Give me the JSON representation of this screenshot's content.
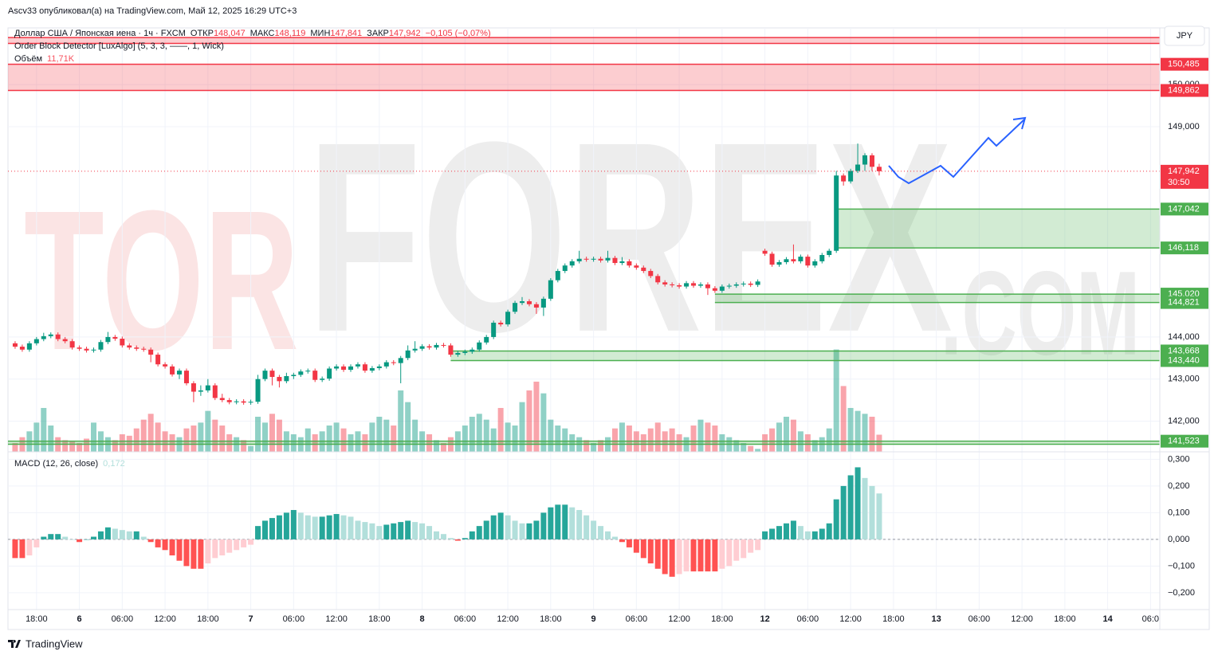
{
  "header": {
    "publisher": "Ascv33 опубликовал(а) на TradingView.com, Май 12, 2025 16:29 UTC+3",
    "currency": "JPY"
  },
  "legend": {
    "symbol": "Доллар США / Японская иена · 1ч · FXCM",
    "open_label": "ОТКР",
    "open": "148,047",
    "high_label": "МАКС",
    "high": "148,119",
    "low_label": "МИН",
    "low": "147,841",
    "close_label": "ЗАКР",
    "close": "147,942",
    "change": "−0,105 (−0,07%)",
    "indicator": "Order Block Detector [LuxAlgo] (5, 3, 3, ——, 1, Wick)",
    "volume_label": "Объём",
    "volume_value": "11,71K",
    "macd_label": "MACD (12, 26, close)",
    "macd_value": "0,172"
  },
  "watermark": [
    "TOR",
    "FOREX",
    ".COM"
  ],
  "footer": "TradingView",
  "chart_data": [
    {
      "type": "candlestick",
      "up_color": "#089981",
      "down_color": "#f23645",
      "xlim": [
        -1,
        160.3
      ],
      "xticks": [
        {
          "value": 3,
          "label": "18:00"
        },
        {
          "value": 9,
          "label": "6"
        },
        {
          "value": 15,
          "label": "06:00"
        },
        {
          "value": 21,
          "label": "12:00"
        },
        {
          "value": 27,
          "label": "18:00"
        },
        {
          "value": 33,
          "label": "7"
        },
        {
          "value": 39,
          "label": "06:00"
        },
        {
          "value": 45,
          "label": "12:00"
        },
        {
          "value": 51,
          "label": "18:00"
        },
        {
          "value": 57,
          "label": "8"
        },
        {
          "value": 63,
          "label": "06:00"
        },
        {
          "value": 69,
          "label": "12:00"
        },
        {
          "value": 75,
          "label": "18:00"
        },
        {
          "value": 81,
          "label": "9"
        },
        {
          "value": 87,
          "label": "06:00"
        },
        {
          "value": 93,
          "label": "12:00"
        },
        {
          "value": 99,
          "label": "18:00"
        },
        {
          "value": 105,
          "label": "12"
        },
        {
          "value": 111,
          "label": "06:00"
        },
        {
          "value": 117,
          "label": "12:00"
        },
        {
          "value": 123,
          "label": "18:00"
        },
        {
          "value": 129,
          "label": "13"
        },
        {
          "value": 135,
          "label": "06:00"
        },
        {
          "value": 141,
          "label": "12:00"
        },
        {
          "value": 147,
          "label": "18:00"
        },
        {
          "value": 153,
          "label": "14"
        },
        {
          "value": 159,
          "label": "06:0"
        }
      ],
      "ylim": [
        141.27,
        151.35
      ],
      "yticks": [
        {
          "value": 150,
          "label": "150,000"
        },
        {
          "value": 149,
          "label": "149,000"
        },
        {
          "value": 144,
          "label": "144,000"
        },
        {
          "value": 143,
          "label": "143,000"
        },
        {
          "value": 142,
          "label": "142,000"
        }
      ],
      "grid": true,
      "open": [
        143.85,
        143.77,
        143.7,
        143.85,
        143.95,
        144.02,
        144.06,
        143.95,
        143.9,
        143.75,
        143.72,
        143.68,
        143.7,
        143.88,
        144.0,
        143.96,
        143.8,
        143.75,
        143.72,
        143.7,
        143.58,
        143.35,
        143.3,
        143.11,
        143.2,
        142.9,
        142.7,
        142.73,
        142.85,
        142.55,
        142.5,
        142.45,
        142.47,
        142.44,
        142.46,
        143.0,
        143.2,
        143.05,
        142.95,
        143.07,
        143.1,
        143.18,
        143.2,
        142.98,
        143.01,
        143.25,
        143.3,
        143.22,
        143.3,
        143.35,
        143.2,
        143.26,
        143.3,
        143.4,
        143.38,
        143.5,
        143.68,
        143.72,
        143.78,
        143.75,
        143.81,
        143.8,
        143.58,
        143.62,
        143.65,
        143.7,
        143.87,
        144.0,
        144.34,
        144.3,
        144.6,
        144.81,
        144.85,
        144.78,
        144.7,
        144.91,
        145.35,
        145.57,
        145.7,
        145.8,
        145.86,
        145.84,
        145.86,
        145.82,
        145.88,
        145.76,
        145.8,
        145.7,
        145.65,
        145.57,
        145.45,
        145.3,
        145.25,
        145.23,
        145.2,
        145.28,
        145.22,
        145.25,
        145.16,
        145.1,
        145.2,
        145.22,
        145.25,
        145.27,
        145.24,
        146.05,
        145.98,
        145.72,
        145.78,
        145.85,
        145.8,
        145.91,
        145.7,
        145.8,
        145.95,
        146.05,
        147.84,
        147.7,
        147.95,
        148.1,
        148.32,
        148.047
      ],
      "high": [
        143.9,
        143.82,
        143.9,
        144.0,
        144.1,
        144.11,
        144.11,
        144.0,
        143.95,
        143.8,
        143.77,
        143.75,
        143.93,
        144.12,
        144.05,
        144.01,
        143.85,
        143.8,
        143.77,
        143.75,
        143.63,
        143.4,
        143.35,
        143.25,
        143.25,
        142.95,
        142.85,
        143.0,
        142.9,
        142.65,
        142.55,
        142.52,
        142.52,
        142.51,
        143.1,
        143.25,
        143.25,
        143.1,
        143.15,
        143.15,
        143.23,
        143.25,
        143.25,
        143.06,
        143.3,
        143.35,
        143.35,
        143.35,
        143.4,
        143.4,
        143.31,
        143.35,
        143.45,
        143.45,
        143.55,
        143.8,
        143.9,
        143.83,
        143.83,
        143.86,
        143.86,
        143.85,
        143.67,
        143.7,
        143.75,
        143.92,
        144.05,
        144.39,
        144.39,
        144.65,
        144.86,
        144.95,
        144.9,
        144.83,
        144.96,
        145.4,
        145.62,
        145.75,
        145.85,
        146.05,
        145.91,
        145.91,
        145.91,
        146.05,
        145.93,
        145.9,
        145.85,
        145.75,
        145.7,
        145.62,
        145.5,
        145.35,
        145.3,
        145.28,
        145.33,
        145.33,
        145.3,
        145.3,
        145.21,
        145.25,
        145.27,
        145.3,
        145.32,
        145.32,
        145.37,
        146.1,
        146.03,
        145.83,
        145.9,
        146.2,
        145.96,
        145.96,
        145.85,
        146.0,
        146.1,
        147.95,
        147.89,
        148.0,
        148.6,
        148.37,
        148.37,
        148.119
      ],
      "low": [
        143.72,
        143.65,
        143.65,
        143.8,
        143.9,
        143.97,
        143.9,
        143.85,
        143.7,
        143.67,
        143.63,
        143.63,
        143.65,
        143.83,
        143.91,
        143.75,
        143.7,
        143.67,
        143.65,
        143.4,
        143.3,
        143.25,
        143.06,
        143.0,
        142.85,
        142.45,
        142.6,
        142.68,
        142.5,
        142.45,
        142.4,
        142.4,
        142.39,
        142.39,
        142.41,
        142.95,
        142.85,
        142.8,
        142.9,
        143.0,
        143.05,
        143.13,
        142.93,
        142.93,
        142.96,
        143.2,
        143.17,
        143.17,
        143.25,
        143.15,
        143.15,
        143.21,
        143.25,
        143.33,
        142.9,
        143.45,
        143.63,
        143.67,
        143.7,
        143.7,
        143.75,
        143.53,
        143.53,
        143.57,
        143.6,
        143.65,
        143.82,
        143.95,
        144.25,
        144.25,
        144.55,
        144.76,
        144.73,
        144.55,
        144.5,
        144.86,
        145.3,
        145.52,
        145.65,
        145.75,
        145.79,
        145.79,
        145.77,
        145.77,
        145.71,
        145.71,
        145.65,
        145.6,
        145.52,
        145.4,
        145.25,
        145.2,
        145.18,
        145.15,
        145.15,
        145.17,
        145.17,
        145.0,
        145.05,
        145.05,
        145.15,
        145.17,
        145.2,
        145.19,
        145.19,
        145.93,
        145.67,
        145.67,
        145.73,
        145.75,
        145.75,
        145.65,
        145.65,
        145.75,
        145.9,
        146.0,
        147.6,
        147.65,
        147.9,
        147.95,
        147.95,
        147.841
      ],
      "close": [
        143.77,
        143.7,
        143.85,
        143.95,
        144.02,
        144.06,
        143.95,
        143.9,
        143.75,
        143.72,
        143.68,
        143.7,
        143.88,
        144.0,
        143.96,
        143.8,
        143.75,
        143.72,
        143.7,
        143.58,
        143.35,
        143.3,
        143.11,
        143.2,
        142.9,
        142.7,
        142.73,
        142.85,
        142.55,
        142.5,
        142.45,
        142.47,
        142.44,
        142.46,
        143.0,
        143.2,
        143.05,
        142.95,
        143.07,
        143.1,
        143.18,
        143.2,
        142.98,
        143.01,
        143.25,
        143.3,
        143.22,
        143.3,
        143.35,
        143.2,
        143.26,
        143.3,
        143.4,
        143.38,
        143.5,
        143.68,
        143.72,
        143.78,
        143.75,
        143.81,
        143.8,
        143.58,
        143.62,
        143.65,
        143.7,
        143.87,
        144.0,
        144.34,
        144.3,
        144.6,
        144.81,
        144.85,
        144.78,
        144.7,
        144.91,
        145.35,
        145.57,
        145.7,
        145.8,
        145.86,
        145.84,
        145.86,
        145.82,
        145.88,
        145.76,
        145.8,
        145.7,
        145.65,
        145.57,
        145.45,
        145.3,
        145.25,
        145.23,
        145.2,
        145.28,
        145.22,
        145.25,
        145.16,
        145.1,
        145.2,
        145.22,
        145.25,
        145.27,
        145.24,
        145.32,
        145.98,
        145.72,
        145.78,
        145.85,
        145.8,
        145.91,
        145.7,
        145.8,
        145.95,
        146.05,
        147.84,
        147.7,
        147.95,
        148.1,
        148.32,
        148.047,
        147.942
      ],
      "last_price": {
        "value": 147.942,
        "label": "147,942"
      },
      "countdown": "30:50",
      "zones": [
        {
          "top": 151.12,
          "bottom": 150.98,
          "color": "#f23645",
          "start": -1
        },
        {
          "top": {
            "value": 150.485,
            "label": "150,485"
          },
          "bottom": {
            "value": 149.862,
            "label": "149,862"
          },
          "color": "#f23645",
          "start": -1
        },
        {
          "top": {
            "value": 147.042,
            "label": "147,042"
          },
          "bottom": {
            "value": 146.118,
            "label": "146,118"
          },
          "color": "#4caf50",
          "start": 115
        },
        {
          "top": {
            "value": 145.02,
            "label": "145,020"
          },
          "bottom": {
            "value": 144.821,
            "label": "144,821"
          },
          "color": "#4caf50",
          "start": 98
        },
        {
          "top": {
            "value": 143.668,
            "label": "143,668"
          },
          "bottom": {
            "value": 143.44,
            "label": "143,440"
          },
          "color": "#4caf50",
          "start": 61
        },
        {
          "top": {
            "value": 141.523,
            "label": "141,523"
          },
          "bottom": 141.45,
          "color": "#4caf50",
          "start": -1
        }
      ]
    },
    {
      "type": "volume",
      "ylim": [
        0,
        290
      ],
      "values": [
        6,
        10,
        14,
        20,
        30,
        18,
        10,
        8,
        7,
        6,
        9,
        20,
        14,
        10,
        8,
        12,
        11,
        16,
        22,
        26,
        20,
        14,
        12,
        10,
        16,
        18,
        20,
        28,
        22,
        18,
        12,
        10,
        8,
        4,
        24,
        20,
        26,
        22,
        14,
        12,
        10,
        16,
        12,
        14,
        18,
        20,
        16,
        12,
        14,
        12,
        20,
        24,
        22,
        18,
        42,
        34,
        22,
        14,
        12,
        8,
        6,
        10,
        14,
        18,
        24,
        26,
        22,
        16,
        30,
        20,
        18,
        34,
        42,
        48,
        40,
        22,
        18,
        16,
        12,
        10,
        8,
        6,
        8,
        10,
        16,
        20,
        18,
        14,
        12,
        16,
        20,
        14,
        16,
        12,
        10,
        18,
        22,
        20,
        18,
        12,
        10,
        8,
        6,
        4,
        2,
        12,
        16,
        20,
        24,
        22,
        14,
        12,
        8,
        10,
        16,
        70,
        45,
        30,
        28,
        26,
        24,
        11.71
      ]
    },
    {
      "type": "macd",
      "ylim": [
        -0.263,
        0.328
      ],
      "yticks": [
        {
          "value": 0.3,
          "label": "0,300"
        },
        {
          "value": 0.2,
          "label": "0,200"
        },
        {
          "value": 0.1,
          "label": "0,100"
        },
        {
          "value": 0,
          "label": "0,000"
        },
        {
          "value": -0.1,
          "label": "−0,100"
        },
        {
          "value": -0.2,
          "label": "−0,200"
        }
      ],
      "colors": {
        "rise_up": "#26a69a",
        "fall_up": "#b2dfdb",
        "fall_down": "#ff5252",
        "rise_down": "#ffcdd2"
      },
      "values": [
        -0.07,
        -0.07,
        -0.06,
        -0.03,
        0.01,
        0.02,
        0.02,
        0.01,
        0,
        -0.01,
        0,
        0.01,
        0.03,
        0.045,
        0.04,
        0.035,
        0.03,
        0.03,
        0.01,
        -0.01,
        -0.03,
        -0.04,
        -0.06,
        -0.08,
        -0.1,
        -0.11,
        -0.11,
        -0.09,
        -0.07,
        -0.06,
        -0.05,
        -0.04,
        -0.03,
        -0.02,
        0.05,
        0.07,
        0.08,
        0.09,
        0.1,
        0.11,
        0.1,
        0.09,
        0.085,
        0.085,
        0.09,
        0.095,
        0.09,
        0.085,
        0.07,
        0.065,
        0.06,
        0.05,
        0.055,
        0.06,
        0.065,
        0.07,
        0.065,
        0.06,
        0.05,
        0.03,
        0.02,
        0.005,
        -0.005,
        0.005,
        0.03,
        0.05,
        0.07,
        0.09,
        0.1,
        0.09,
        0.07,
        0.06,
        0.06,
        0.07,
        0.1,
        0.12,
        0.13,
        0.13,
        0.12,
        0.11,
        0.09,
        0.07,
        0.05,
        0.03,
        0.01,
        -0.01,
        -0.03,
        -0.05,
        -0.07,
        -0.09,
        -0.11,
        -0.13,
        -0.14,
        -0.13,
        -0.12,
        -0.12,
        -0.12,
        -0.12,
        -0.12,
        -0.11,
        -0.1,
        -0.08,
        -0.07,
        -0.05,
        -0.04,
        0.03,
        0.04,
        0.05,
        0.06,
        0.07,
        0.05,
        0.03,
        0.03,
        0.04,
        0.06,
        0.15,
        0.2,
        0.24,
        0.27,
        0.23,
        0.2,
        0.172
      ]
    }
  ]
}
